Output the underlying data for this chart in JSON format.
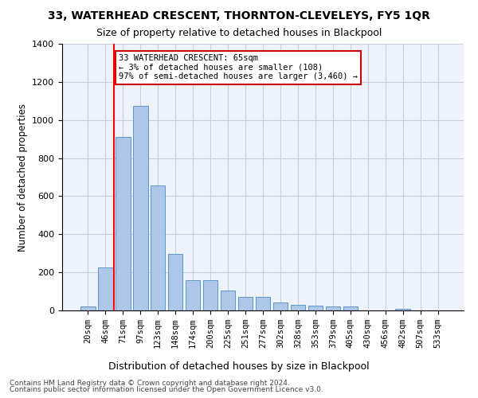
{
  "title1": "33, WATERHEAD CRESCENT, THORNTON-CLEVELEYS, FY5 1QR",
  "title2": "Size of property relative to detached houses in Blackpool",
  "xlabel": "Distribution of detached houses by size in Blackpool",
  "ylabel": "Number of detached properties",
  "footer1": "Contains HM Land Registry data © Crown copyright and database right 2024.",
  "footer2": "Contains public sector information licensed under the Open Government Licence v3.0.",
  "annotation_line1": "33 WATERHEAD CRESCENT: 65sqm",
  "annotation_line2": "← 3% of detached houses are smaller (108)",
  "annotation_line3": "97% of semi-detached houses are larger (3,460) →",
  "bar_values": [
    20,
    225,
    910,
    1075,
    655,
    295,
    160,
    160,
    105,
    70,
    70,
    40,
    30,
    25,
    20,
    20,
    0,
    0,
    10,
    0,
    0
  ],
  "categories": [
    "20sqm",
    "46sqm",
    "71sqm",
    "97sqm",
    "123sqm",
    "148sqm",
    "174sqm",
    "200sqm",
    "225sqm",
    "251sqm",
    "277sqm",
    "302sqm",
    "328sqm",
    "353sqm",
    "379sqm",
    "405sqm",
    "430sqm",
    "456sqm",
    "482sqm",
    "507sqm",
    "533sqm"
  ],
  "bar_color": "#aec6e8",
  "bar_edge_color": "#5a96cc",
  "annotation_box_color": "#cc0000",
  "ylim_min": 0,
  "ylim_max": 1400,
  "yticks": [
    0,
    200,
    400,
    600,
    800,
    1000,
    1200,
    1400
  ],
  "background_color": "#eef2fb",
  "grid_color": "#c8d0e0",
  "vline_pos": 1.5
}
